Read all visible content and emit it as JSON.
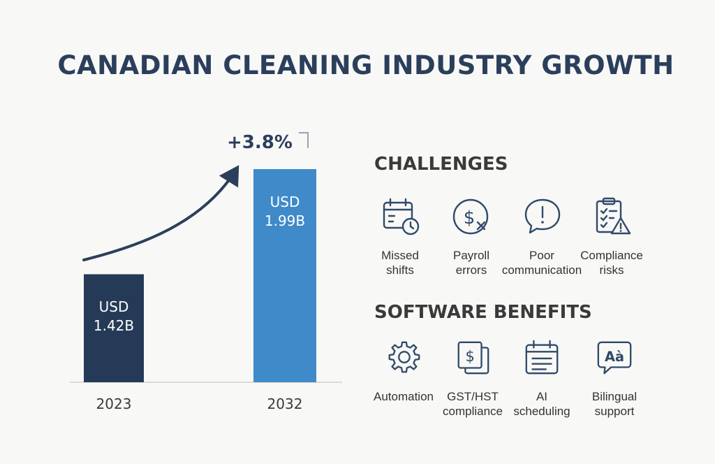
{
  "title": "CANADIAN CLEANING INDUSTRY GROWTH",
  "colors": {
    "title": "#2b3f5c",
    "bar_2023": "#243a57",
    "bar_2032": "#3f8ac9",
    "icon": "#2f4a6a",
    "arrow": "#2b3f5c"
  },
  "chart_data": {
    "type": "bar",
    "categories": [
      "2023",
      "2032"
    ],
    "values": [
      1.42,
      1.99
    ],
    "data_labels": [
      "USD\n1.42B",
      "USD\n1.99B"
    ],
    "annotation": "+3.8%",
    "title": "",
    "xlabel": "",
    "ylabel": ""
  },
  "challenges": {
    "heading": "CHALLENGES",
    "items": [
      {
        "label": "Missed\nshifts",
        "icon": "calendar-clock-icon"
      },
      {
        "label": "Payroll\nerrors",
        "icon": "dollar-error-icon"
      },
      {
        "label": "Poor\ncommunication",
        "icon": "speech-bubble-exclamation-icon"
      },
      {
        "label": "Compliance\nrisks",
        "icon": "clipboard-warning-icon"
      }
    ]
  },
  "benefits": {
    "heading": "SOFTWARE BENEFITS",
    "items": [
      {
        "label": "Automation",
        "icon": "gear-icon"
      },
      {
        "label": "GST/HST\ncompliance",
        "icon": "tax-document-icon"
      },
      {
        "label": "AI\nscheduling",
        "icon": "calendar-icon"
      },
      {
        "label": "Bilingual\nsupport",
        "icon": "translation-bubble-icon"
      }
    ]
  }
}
